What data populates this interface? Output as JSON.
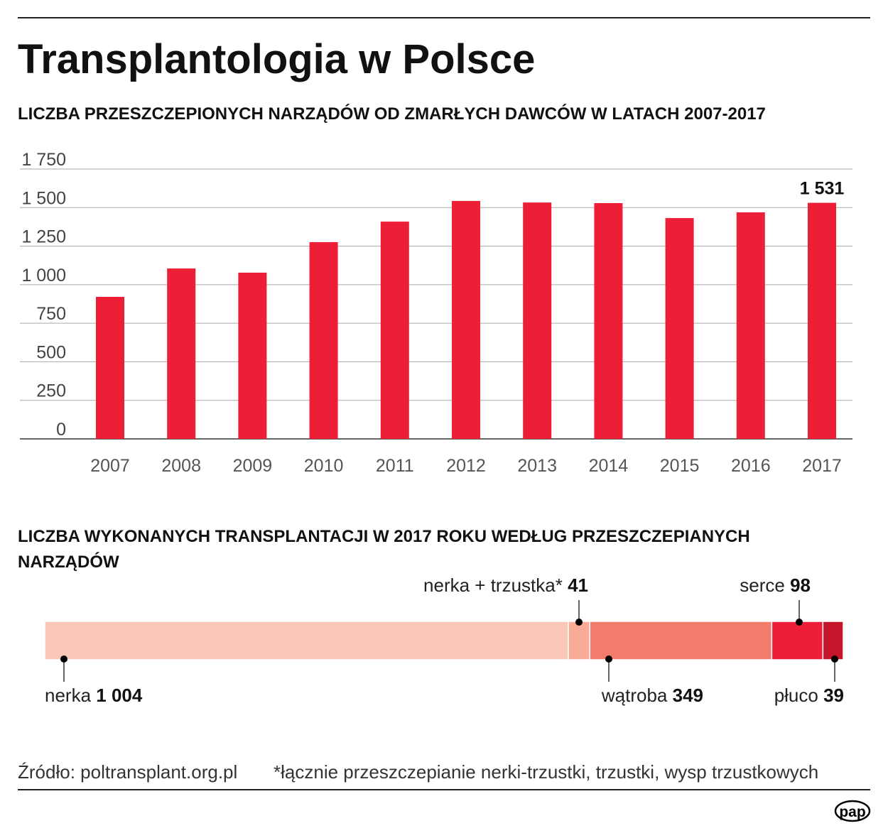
{
  "title": "Transplantologia w Polsce",
  "chart_data": [
    {
      "type": "bar",
      "title": "LICZBA PRZESZCZEPIONYCH NARZĄDÓW OD ZMARŁYCH DAWCÓW W LATACH 2007-2017",
      "categories": [
        "2007",
        "2008",
        "2009",
        "2010",
        "2011",
        "2012",
        "2013",
        "2014",
        "2015",
        "2016",
        "2017"
      ],
      "values": [
        921,
        1105,
        1078,
        1276,
        1409,
        1543,
        1533,
        1529,
        1432,
        1469,
        1531
      ],
      "ylim": [
        0,
        1750
      ],
      "yticks": [
        0,
        250,
        500,
        750,
        1000,
        1250,
        1500,
        1750
      ],
      "ytick_labels": [
        "0",
        "250",
        "500",
        "750",
        "1 000",
        "1 250",
        "1 500",
        "1 750"
      ],
      "data_labels": [
        {
          "category": "2017",
          "text": "1 531"
        }
      ],
      "grid": true,
      "color": "#ec1f36"
    },
    {
      "type": "bar",
      "subtype": "stacked-horizontal",
      "title": "LICZBA WYKONANYCH TRANSPLANTACJI W 2017 ROKU WEDŁUG PRZESZCZEPIANYCH NARZĄDÓW",
      "segments": [
        {
          "name": "nerka",
          "value": 1004,
          "value_label": "1 004",
          "color": "#f9c8b9",
          "label_side": "bottom"
        },
        {
          "name": "nerka + trzustka*",
          "value": 41,
          "value_label": "41",
          "color": "#f8ab97",
          "label_side": "top"
        },
        {
          "name": "wątroba",
          "value": 349,
          "value_label": "349",
          "color": "#f27b6b",
          "label_side": "bottom"
        },
        {
          "name": "serce",
          "value": 98,
          "value_label": "98",
          "color": "#ec1f36",
          "label_side": "top"
        },
        {
          "name": "płuco",
          "value": 39,
          "value_label": "39",
          "color": "#c4172b",
          "label_side": "bottom"
        }
      ]
    }
  ],
  "footer": {
    "source": "Źródło: poltransplant.org.pl",
    "note": "*łącznie przeszczepianie nerki-trzustki, trzustki, wysp trzustkowych",
    "logo": "pap"
  }
}
